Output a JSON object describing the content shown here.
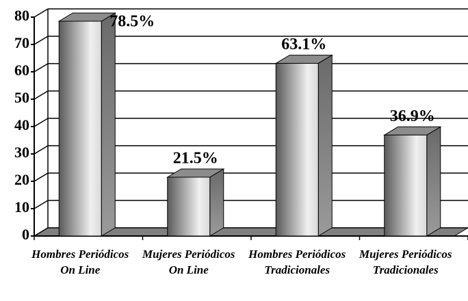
{
  "chart_data": {
    "type": "bar3d",
    "categories": [
      "Hombres Periódicos On Line",
      "Mujeres Periódicos On Line",
      "Hombres Periódicos Tradicionales",
      "Mujeres Periódicos Tradicionales"
    ],
    "values": [
      78.5,
      21.5,
      63.1,
      36.9
    ],
    "value_labels": [
      "78.5%",
      "21.5%",
      "63.1%",
      "36.9%"
    ],
    "ylim": [
      0,
      80
    ],
    "yticks": [
      0,
      10,
      20,
      30,
      40,
      50,
      60,
      70,
      80
    ],
    "grid": true
  }
}
